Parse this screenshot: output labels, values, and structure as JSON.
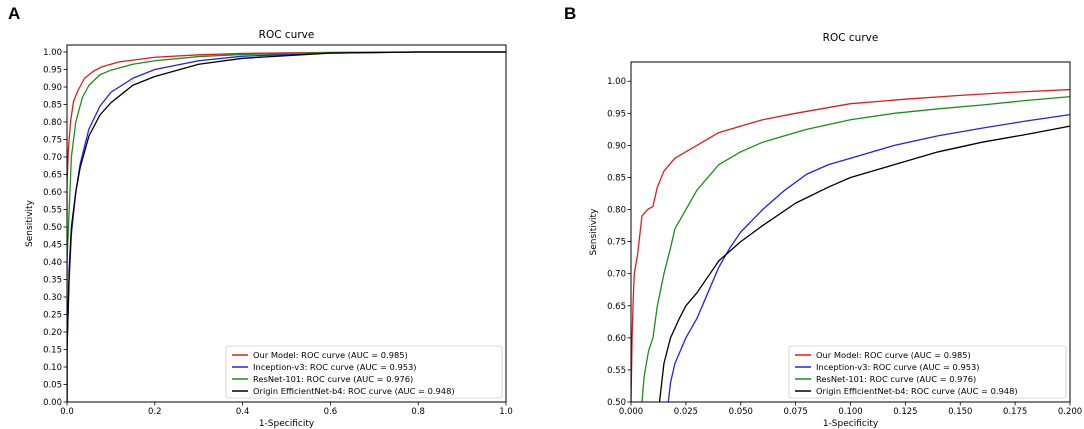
{
  "panels": [
    {
      "letter": "A"
    },
    {
      "letter": "B"
    }
  ],
  "chart_data": [
    {
      "type": "line",
      "title": "ROC curve",
      "xlabel": "1-Specificity",
      "ylabel": "Sensitivity",
      "xlim": [
        0,
        1
      ],
      "ylim": [
        0,
        1.02
      ],
      "xticks": [
        0.0,
        0.2,
        0.4,
        0.6,
        0.8,
        1.0
      ],
      "xtick_labels": [
        "0.0",
        "0.2",
        "0.4",
        "0.6",
        "0.8",
        "1.0"
      ],
      "yticks": [
        0.0,
        0.05,
        0.1,
        0.15,
        0.2,
        0.25,
        0.3,
        0.35,
        0.4,
        0.45,
        0.5,
        0.55,
        0.6,
        0.65,
        0.7,
        0.75,
        0.8,
        0.85,
        0.9,
        0.95,
        1.0
      ],
      "ytick_labels": [
        "0.00",
        "0.05",
        "0.10",
        "0.15",
        "0.20",
        "0.25",
        "0.30",
        "0.35",
        "0.40",
        "0.45",
        "0.50",
        "0.55",
        "0.60",
        "0.65",
        "0.70",
        "0.75",
        "0.80",
        "0.85",
        "0.90",
        "0.95",
        "1.00"
      ],
      "legend_position": "lower-right",
      "series": [
        {
          "name": "Our Model: ROC curve (AUC = 0.985)",
          "color": "#e41a1c",
          "points": [
            [
              0,
              0
            ],
            [
              0,
              0.62
            ],
            [
              0.003,
              0.72
            ],
            [
              0.008,
              0.8
            ],
            [
              0.015,
              0.86
            ],
            [
              0.025,
              0.89
            ],
            [
              0.04,
              0.925
            ],
            [
              0.06,
              0.945
            ],
            [
              0.08,
              0.958
            ],
            [
              0.12,
              0.972
            ],
            [
              0.2,
              0.985
            ],
            [
              0.3,
              0.992
            ],
            [
              0.4,
              0.996
            ],
            [
              0.6,
              0.999
            ],
            [
              0.8,
              1.0
            ],
            [
              1.0,
              1.0
            ]
          ]
        },
        {
          "name": "Inception-v3: ROC curve (AUC = 0.953)",
          "color": "#1f1fff",
          "points": [
            [
              0,
              0
            ],
            [
              0,
              0.15
            ],
            [
              0.005,
              0.35
            ],
            [
              0.01,
              0.48
            ],
            [
              0.02,
              0.6
            ],
            [
              0.03,
              0.68
            ],
            [
              0.05,
              0.78
            ],
            [
              0.075,
              0.845
            ],
            [
              0.1,
              0.885
            ],
            [
              0.15,
              0.925
            ],
            [
              0.2,
              0.95
            ],
            [
              0.3,
              0.975
            ],
            [
              0.4,
              0.988
            ],
            [
              0.6,
              0.997
            ],
            [
              0.8,
              1.0
            ],
            [
              1.0,
              1.0
            ]
          ]
        },
        {
          "name": "ResNet-101: ROC curve (AUC = 0.976)",
          "color": "#1a8f1a",
          "points": [
            [
              0,
              0
            ],
            [
              0,
              0.4
            ],
            [
              0.005,
              0.55
            ],
            [
              0.01,
              0.7
            ],
            [
              0.02,
              0.8
            ],
            [
              0.035,
              0.87
            ],
            [
              0.05,
              0.905
            ],
            [
              0.075,
              0.935
            ],
            [
              0.1,
              0.948
            ],
            [
              0.15,
              0.965
            ],
            [
              0.2,
              0.975
            ],
            [
              0.3,
              0.987
            ],
            [
              0.4,
              0.993
            ],
            [
              0.6,
              0.998
            ],
            [
              0.8,
              1.0
            ],
            [
              1.0,
              1.0
            ]
          ]
        },
        {
          "name": "Origin EfficientNet-b4: ROC curve (AUC = 0.948)",
          "color": "#000000",
          "points": [
            [
              0,
              0
            ],
            [
              0,
              0.15
            ],
            [
              0.005,
              0.38
            ],
            [
              0.01,
              0.5
            ],
            [
              0.02,
              0.6
            ],
            [
              0.03,
              0.67
            ],
            [
              0.05,
              0.76
            ],
            [
              0.075,
              0.82
            ],
            [
              0.1,
              0.855
            ],
            [
              0.15,
              0.905
            ],
            [
              0.2,
              0.93
            ],
            [
              0.3,
              0.965
            ],
            [
              0.4,
              0.982
            ],
            [
              0.6,
              0.997
            ],
            [
              0.8,
              1.0
            ],
            [
              1.0,
              1.0
            ]
          ]
        }
      ]
    },
    {
      "type": "line",
      "title": "ROC curve",
      "xlabel": "1-Specificity",
      "ylabel": "Sensitivity",
      "xlim": [
        0,
        0.2
      ],
      "ylim": [
        0.5,
        1.03
      ],
      "xticks": [
        0.0,
        0.025,
        0.05,
        0.075,
        0.1,
        0.125,
        0.15,
        0.175,
        0.2
      ],
      "xtick_labels": [
        "0.000",
        "0.025",
        "0.050",
        "0.075",
        "0.100",
        "0.125",
        "0.150",
        "0.175",
        "0.200"
      ],
      "yticks": [
        0.5,
        0.55,
        0.6,
        0.65,
        0.7,
        0.75,
        0.8,
        0.85,
        0.9,
        0.95,
        1.0
      ],
      "ytick_labels": [
        "0.50",
        "0.55",
        "0.60",
        "0.65",
        "0.70",
        "0.75",
        "0.80",
        "0.85",
        "0.90",
        "0.95",
        "1.00"
      ],
      "legend_position": "lower-right",
      "series": [
        {
          "name": "Our Model: ROC curve (AUC = 0.985)",
          "color": "#e41a1c",
          "points": [
            [
              0,
              0.5
            ],
            [
              0.0005,
              0.6
            ],
            [
              0.001,
              0.66
            ],
            [
              0.0015,
              0.7
            ],
            [
              0.003,
              0.73
            ],
            [
              0.004,
              0.76
            ],
            [
              0.005,
              0.79
            ],
            [
              0.0075,
              0.8
            ],
            [
              0.01,
              0.805
            ],
            [
              0.012,
              0.835
            ],
            [
              0.015,
              0.86
            ],
            [
              0.02,
              0.88
            ],
            [
              0.025,
              0.89
            ],
            [
              0.03,
              0.9
            ],
            [
              0.035,
              0.91
            ],
            [
              0.04,
              0.92
            ],
            [
              0.05,
              0.93
            ],
            [
              0.06,
              0.94
            ],
            [
              0.075,
              0.95
            ],
            [
              0.1,
              0.965
            ],
            [
              0.125,
              0.972
            ],
            [
              0.15,
              0.978
            ],
            [
              0.175,
              0.983
            ],
            [
              0.2,
              0.987
            ]
          ]
        },
        {
          "name": "Inception-v3: ROC curve (AUC = 0.953)",
          "color": "#1f1fff",
          "points": [
            [
              0.017,
              0.5
            ],
            [
              0.018,
              0.53
            ],
            [
              0.02,
              0.56
            ],
            [
              0.025,
              0.6
            ],
            [
              0.03,
              0.63
            ],
            [
              0.035,
              0.67
            ],
            [
              0.04,
              0.71
            ],
            [
              0.045,
              0.74
            ],
            [
              0.05,
              0.765
            ],
            [
              0.06,
              0.8
            ],
            [
              0.07,
              0.83
            ],
            [
              0.08,
              0.855
            ],
            [
              0.09,
              0.87
            ],
            [
              0.1,
              0.88
            ],
            [
              0.12,
              0.9
            ],
            [
              0.14,
              0.915
            ],
            [
              0.16,
              0.927
            ],
            [
              0.18,
              0.938
            ],
            [
              0.2,
              0.948
            ]
          ]
        },
        {
          "name": "ResNet-101: ROC curve (AUC = 0.976)",
          "color": "#1a8f1a",
          "points": [
            [
              0.005,
              0.5
            ],
            [
              0.006,
              0.54
            ],
            [
              0.008,
              0.58
            ],
            [
              0.01,
              0.6
            ],
            [
              0.012,
              0.65
            ],
            [
              0.015,
              0.7
            ],
            [
              0.018,
              0.74
            ],
            [
              0.02,
              0.77
            ],
            [
              0.025,
              0.8
            ],
            [
              0.03,
              0.83
            ],
            [
              0.035,
              0.85
            ],
            [
              0.04,
              0.87
            ],
            [
              0.05,
              0.89
            ],
            [
              0.06,
              0.905
            ],
            [
              0.07,
              0.915
            ],
            [
              0.08,
              0.925
            ],
            [
              0.1,
              0.94
            ],
            [
              0.12,
              0.95
            ],
            [
              0.14,
              0.957
            ],
            [
              0.16,
              0.963
            ],
            [
              0.18,
              0.97
            ],
            [
              0.2,
              0.976
            ]
          ]
        },
        {
          "name": "Origin EfficientNet-b4: ROC curve (AUC = 0.948)",
          "color": "#000000",
          "points": [
            [
              0.013,
              0.5
            ],
            [
              0.015,
              0.56
            ],
            [
              0.018,
              0.6
            ],
            [
              0.022,
              0.63
            ],
            [
              0.025,
              0.65
            ],
            [
              0.03,
              0.67
            ],
            [
              0.04,
              0.72
            ],
            [
              0.05,
              0.75
            ],
            [
              0.06,
              0.775
            ],
            [
              0.075,
              0.81
            ],
            [
              0.09,
              0.835
            ],
            [
              0.1,
              0.85
            ],
            [
              0.12,
              0.87
            ],
            [
              0.14,
              0.89
            ],
            [
              0.16,
              0.905
            ],
            [
              0.18,
              0.917
            ],
            [
              0.2,
              0.93
            ]
          ]
        }
      ]
    }
  ]
}
